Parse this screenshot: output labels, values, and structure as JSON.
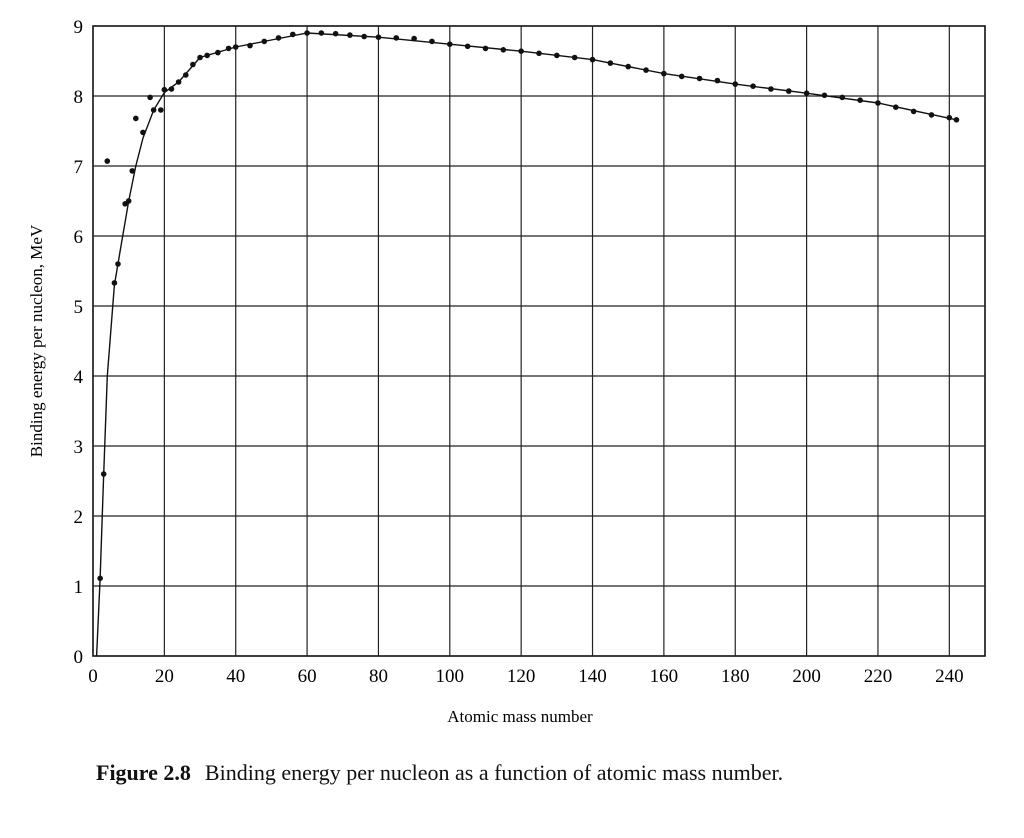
{
  "chart_data": {
    "type": "scatter",
    "title": "",
    "xlabel": "Atomic mass number",
    "ylabel": "Binding energy per nucleon, MeV",
    "xlim": [
      0,
      250
    ],
    "ylim": [
      0,
      9
    ],
    "xticks": [
      0,
      20,
      40,
      60,
      80,
      100,
      120,
      140,
      160,
      180,
      200,
      220,
      240
    ],
    "yticks": [
      "0",
      "1",
      "2",
      "3",
      "4",
      "5",
      "6",
      "7",
      "8",
      "9"
    ],
    "grid": true,
    "points": [
      [
        2,
        1.11
      ],
      [
        3,
        2.6
      ],
      [
        4,
        7.07
      ],
      [
        6,
        5.33
      ],
      [
        7,
        5.6
      ],
      [
        9,
        6.46
      ],
      [
        10,
        6.5
      ],
      [
        11,
        6.93
      ],
      [
        12,
        7.68
      ],
      [
        14,
        7.48
      ],
      [
        16,
        7.98
      ],
      [
        17,
        7.8
      ],
      [
        19,
        7.8
      ],
      [
        20,
        8.09
      ],
      [
        22,
        8.1
      ],
      [
        24,
        8.2
      ],
      [
        26,
        8.3
      ],
      [
        28,
        8.45
      ],
      [
        30,
        8.55
      ],
      [
        32,
        8.58
      ],
      [
        35,
        8.62
      ],
      [
        38,
        8.68
      ],
      [
        40,
        8.7
      ],
      [
        44,
        8.72
      ],
      [
        48,
        8.78
      ],
      [
        52,
        8.83
      ],
      [
        56,
        8.88
      ],
      [
        60,
        8.9
      ],
      [
        64,
        8.9
      ],
      [
        68,
        8.89
      ],
      [
        72,
        8.87
      ],
      [
        76,
        8.85
      ],
      [
        80,
        8.84
      ],
      [
        85,
        8.83
      ],
      [
        90,
        8.82
      ],
      [
        95,
        8.78
      ],
      [
        100,
        8.74
      ],
      [
        105,
        8.71
      ],
      [
        110,
        8.68
      ],
      [
        115,
        8.66
      ],
      [
        120,
        8.64
      ],
      [
        125,
        8.61
      ],
      [
        130,
        8.58
      ],
      [
        135,
        8.55
      ],
      [
        140,
        8.52
      ],
      [
        145,
        8.47
      ],
      [
        150,
        8.42
      ],
      [
        155,
        8.37
      ],
      [
        160,
        8.32
      ],
      [
        165,
        8.28
      ],
      [
        170,
        8.25
      ],
      [
        175,
        8.22
      ],
      [
        180,
        8.17
      ],
      [
        185,
        8.14
      ],
      [
        190,
        8.1
      ],
      [
        195,
        8.07
      ],
      [
        200,
        8.04
      ],
      [
        205,
        8.01
      ],
      [
        210,
        7.98
      ],
      [
        215,
        7.94
      ],
      [
        220,
        7.9
      ],
      [
        225,
        7.84
      ],
      [
        230,
        7.78
      ],
      [
        235,
        7.73
      ],
      [
        240,
        7.69
      ],
      [
        242,
        7.66
      ]
    ],
    "curve": [
      [
        1,
        0
      ],
      [
        2,
        1.1
      ],
      [
        3,
        2.6
      ],
      [
        4,
        4.0
      ],
      [
        6,
        5.3
      ],
      [
        8,
        5.9
      ],
      [
        10,
        6.5
      ],
      [
        12,
        7.0
      ],
      [
        14,
        7.4
      ],
      [
        17,
        7.8
      ],
      [
        20,
        8.05
      ],
      [
        24,
        8.2
      ],
      [
        30,
        8.55
      ],
      [
        40,
        8.7
      ],
      [
        50,
        8.8
      ],
      [
        60,
        8.9
      ],
      [
        80,
        8.84
      ],
      [
        100,
        8.74
      ],
      [
        120,
        8.64
      ],
      [
        140,
        8.52
      ],
      [
        160,
        8.32
      ],
      [
        180,
        8.17
      ],
      [
        200,
        8.04
      ],
      [
        220,
        7.9
      ],
      [
        242,
        7.66
      ]
    ]
  },
  "caption": {
    "label": "Figure 2.8",
    "text": "Binding energy per nucleon as a function of atomic mass number."
  }
}
